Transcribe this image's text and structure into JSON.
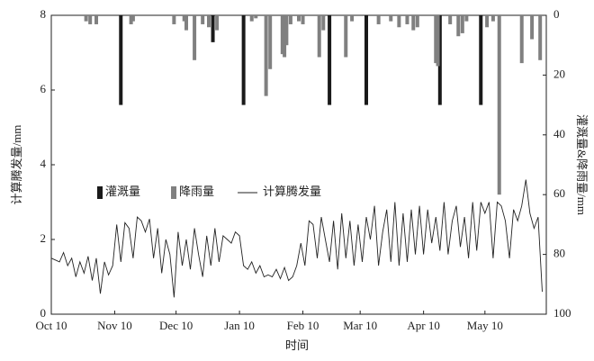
{
  "chart_data": {
    "type": "combo",
    "x_label": "时间",
    "y_label": "计算腾发量/mm",
    "y2_label": "灌溉量&降雨量/mm",
    "xlim": [
      0,
      242
    ],
    "xticks": [
      {
        "value": 0,
        "label": "Oct 10"
      },
      {
        "value": 31,
        "label": "Nov 10"
      },
      {
        "value": 61,
        "label": "Dec 10"
      },
      {
        "value": 92,
        "label": "Jan 10"
      },
      {
        "value": 123,
        "label": "Feb 10"
      },
      {
        "value": 151,
        "label": "Mar 10"
      },
      {
        "value": 182,
        "label": "Apr 10"
      },
      {
        "value": 212,
        "label": "May 10"
      }
    ],
    "ylim": [
      0,
      8
    ],
    "yticks": [
      0,
      2,
      4,
      6,
      8
    ],
    "y2lim": [
      0,
      100
    ],
    "y2ticks": [
      0,
      20,
      40,
      60,
      80,
      100
    ],
    "y2_inverted": true,
    "series": [
      {
        "name": "灌溉量",
        "type": "bar",
        "axis": "y2",
        "color": "#1a1a1a",
        "x": [
          34,
          79,
          94,
          136,
          154,
          190,
          210
        ],
        "values": [
          30,
          9,
          30,
          30,
          30,
          30,
          30
        ]
      },
      {
        "name": "降雨量",
        "type": "bar",
        "axis": "y2",
        "color": "#808080",
        "x": [
          17,
          19,
          22,
          39,
          40,
          60,
          65,
          66,
          70,
          74,
          77,
          81,
          98,
          100,
          105,
          107,
          113,
          114,
          115,
          117,
          121,
          123,
          131,
          133,
          144,
          147,
          160,
          166,
          170,
          174,
          177,
          179,
          188,
          189,
          195,
          199,
          201,
          203,
          213,
          216,
          219,
          230,
          235,
          239
        ],
        "values": [
          2,
          3,
          3,
          3,
          2,
          3,
          2,
          5,
          15,
          3,
          4,
          5,
          2,
          1,
          27,
          18,
          13,
          14,
          10,
          3,
          2,
          3,
          14,
          5,
          14,
          2,
          3,
          2,
          4,
          3,
          5,
          4,
          16,
          17,
          3,
          7,
          6,
          2,
          4,
          2,
          60,
          16,
          8,
          15
        ]
      },
      {
        "name": "计算腾发量",
        "type": "line",
        "axis": "y",
        "color": "#222222",
        "x": [
          0,
          2,
          4,
          6,
          8,
          10,
          12,
          14,
          16,
          18,
          20,
          22,
          24,
          26,
          28,
          30,
          32,
          34,
          36,
          38,
          40,
          42,
          44,
          46,
          48,
          50,
          52,
          54,
          56,
          58,
          60,
          62,
          64,
          66,
          68,
          70,
          72,
          74,
          76,
          78,
          80,
          82,
          84,
          86,
          88,
          90,
          92,
          94,
          96,
          98,
          100,
          102,
          104,
          106,
          108,
          110,
          112,
          114,
          116,
          118,
          120,
          122,
          124,
          126,
          128,
          130,
          132,
          134,
          136,
          138,
          140,
          142,
          144,
          146,
          148,
          150,
          152,
          154,
          156,
          158,
          160,
          162,
          164,
          166,
          168,
          170,
          172,
          174,
          176,
          178,
          180,
          182,
          184,
          186,
          188,
          190,
          192,
          194,
          196,
          198,
          200,
          202,
          204,
          206,
          208,
          210,
          212,
          214,
          216,
          218,
          220,
          222,
          224,
          226,
          228,
          230,
          232,
          234,
          236,
          238,
          240
        ],
        "values": [
          1.5,
          1.45,
          1.4,
          1.65,
          1.3,
          1.5,
          1.0,
          1.4,
          1.1,
          1.55,
          0.9,
          1.5,
          0.55,
          1.4,
          1.05,
          1.3,
          2.4,
          1.4,
          2.45,
          2.3,
          1.5,
          2.6,
          2.5,
          2.2,
          2.55,
          1.5,
          2.3,
          1.1,
          2.0,
          1.6,
          0.45,
          2.2,
          1.3,
          2.0,
          1.2,
          2.3,
          1.6,
          1.0,
          2.1,
          1.3,
          2.3,
          1.4,
          2.1,
          2.0,
          1.9,
          2.2,
          2.1,
          1.3,
          1.2,
          1.4,
          1.1,
          1.3,
          1.0,
          1.05,
          1.0,
          1.2,
          0.95,
          1.25,
          0.9,
          1.0,
          1.3,
          1.9,
          1.3,
          2.5,
          2.4,
          1.5,
          2.6,
          2.0,
          1.4,
          2.5,
          1.2,
          2.7,
          1.5,
          2.5,
          1.3,
          2.4,
          1.4,
          2.6,
          2.0,
          2.9,
          1.3,
          2.2,
          2.8,
          1.4,
          3.0,
          1.3,
          2.7,
          1.4,
          2.8,
          1.6,
          2.9,
          1.6,
          2.8,
          1.9,
          2.6,
          1.7,
          3.0,
          1.6,
          2.5,
          2.9,
          1.8,
          2.6,
          1.5,
          3.0,
          1.7,
          3.0,
          2.7,
          3.0,
          1.5,
          3.0,
          2.9,
          2.5,
          1.5,
          2.8,
          2.5,
          2.9,
          3.6,
          2.7,
          2.3,
          2.6,
          0.6
        ]
      }
    ]
  }
}
